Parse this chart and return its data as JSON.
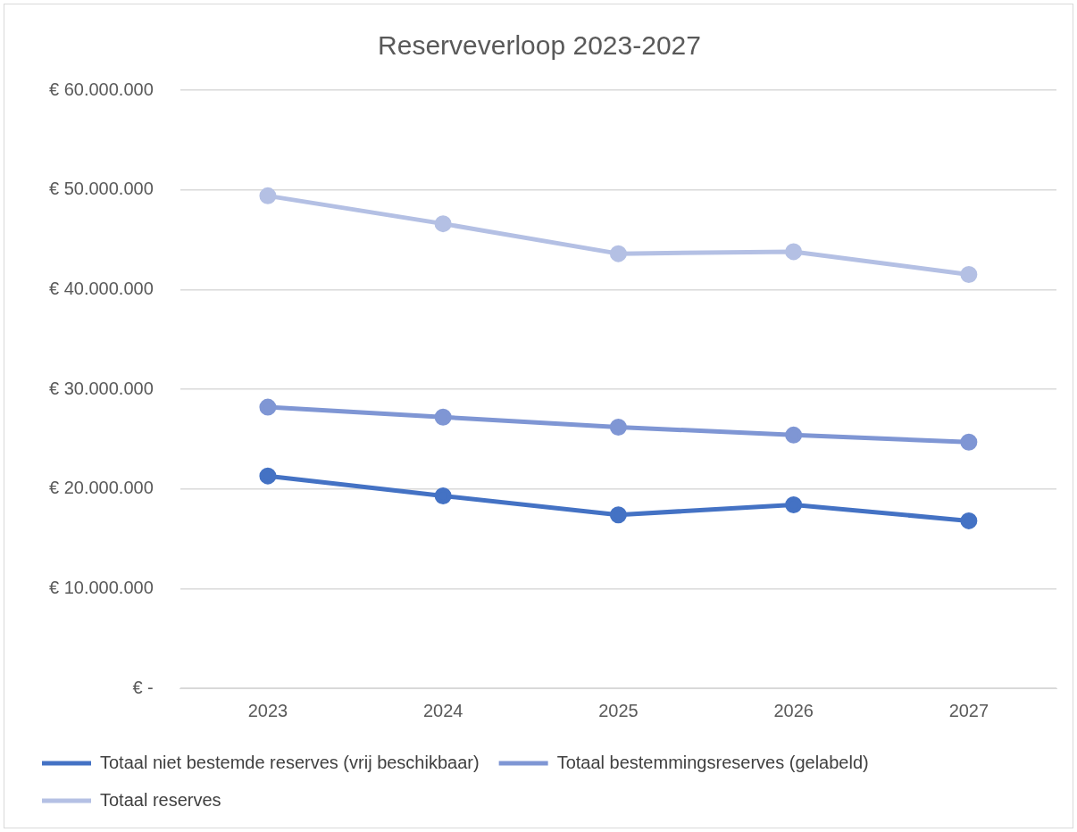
{
  "chart_data": {
    "type": "line",
    "title": "Reserveverloop 2023-2027",
    "categories": [
      "2023",
      "2024",
      "2025",
      "2026",
      "2027"
    ],
    "series": [
      {
        "name": "Totaal niet bestemde reserves (vrij beschikbaar)",
        "color": "#4472c4",
        "values": [
          21300000,
          19300000,
          17400000,
          18400000,
          16800000
        ]
      },
      {
        "name": "Totaal bestemmingsreserves (gelabeld)",
        "color": "#7f96d4",
        "values": [
          28200000,
          27200000,
          26200000,
          25400000,
          24700000
        ]
      },
      {
        "name": "Totaal reserves",
        "color": "#b4c0e4",
        "values": [
          49400000,
          46600000,
          43600000,
          43800000,
          41500000
        ]
      }
    ],
    "ylim": [
      0,
      60000000
    ],
    "yticks": [
      {
        "value": 0,
        "label": "€ -"
      },
      {
        "value": 10000000,
        "label": "€ 10.000.000"
      },
      {
        "value": 20000000,
        "label": "€ 20.000.000"
      },
      {
        "value": 30000000,
        "label": "€ 30.000.000"
      },
      {
        "value": 40000000,
        "label": "€ 40.000.000"
      },
      {
        "value": 50000000,
        "label": "€ 50.000.000"
      },
      {
        "value": 60000000,
        "label": "€ 60.000.000"
      }
    ],
    "grid": "y",
    "legend": "bottom",
    "marker": "circle",
    "line_style": "solid"
  }
}
